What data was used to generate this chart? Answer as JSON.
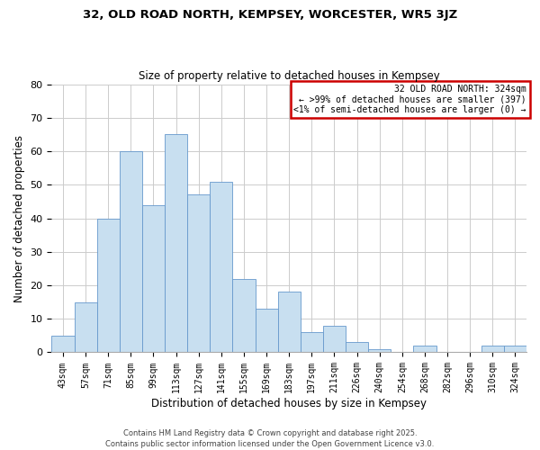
{
  "title_line1": "32, OLD ROAD NORTH, KEMPSEY, WORCESTER, WR5 3JZ",
  "title_line2": "Size of property relative to detached houses in Kempsey",
  "xlabel": "Distribution of detached houses by size in Kempsey",
  "ylabel": "Number of detached properties",
  "bar_color": "#c8dff0",
  "bar_edge_color": "#6699cc",
  "categories": [
    "43sqm",
    "57sqm",
    "71sqm",
    "85sqm",
    "99sqm",
    "113sqm",
    "127sqm",
    "141sqm",
    "155sqm",
    "169sqm",
    "183sqm",
    "197sqm",
    "211sqm",
    "226sqm",
    "240sqm",
    "254sqm",
    "268sqm",
    "282sqm",
    "296sqm",
    "310sqm",
    "324sqm"
  ],
  "values": [
    5,
    15,
    40,
    60,
    44,
    65,
    47,
    51,
    22,
    13,
    18,
    6,
    8,
    3,
    1,
    0,
    2,
    0,
    0,
    2,
    2
  ],
  "ylim": [
    0,
    80
  ],
  "yticks": [
    0,
    10,
    20,
    30,
    40,
    50,
    60,
    70,
    80
  ],
  "legend_title": "32 OLD ROAD NORTH: 324sqm",
  "legend_line1": "← >99% of detached houses are smaller (397)",
  "legend_line2": "<1% of semi-detached houses are larger (0) →",
  "legend_box_color": "#cc0000",
  "footer_line1": "Contains HM Land Registry data © Crown copyright and database right 2025.",
  "footer_line2": "Contains public sector information licensed under the Open Government Licence v3.0.",
  "grid_color": "#cccccc",
  "background_color": "#ffffff"
}
